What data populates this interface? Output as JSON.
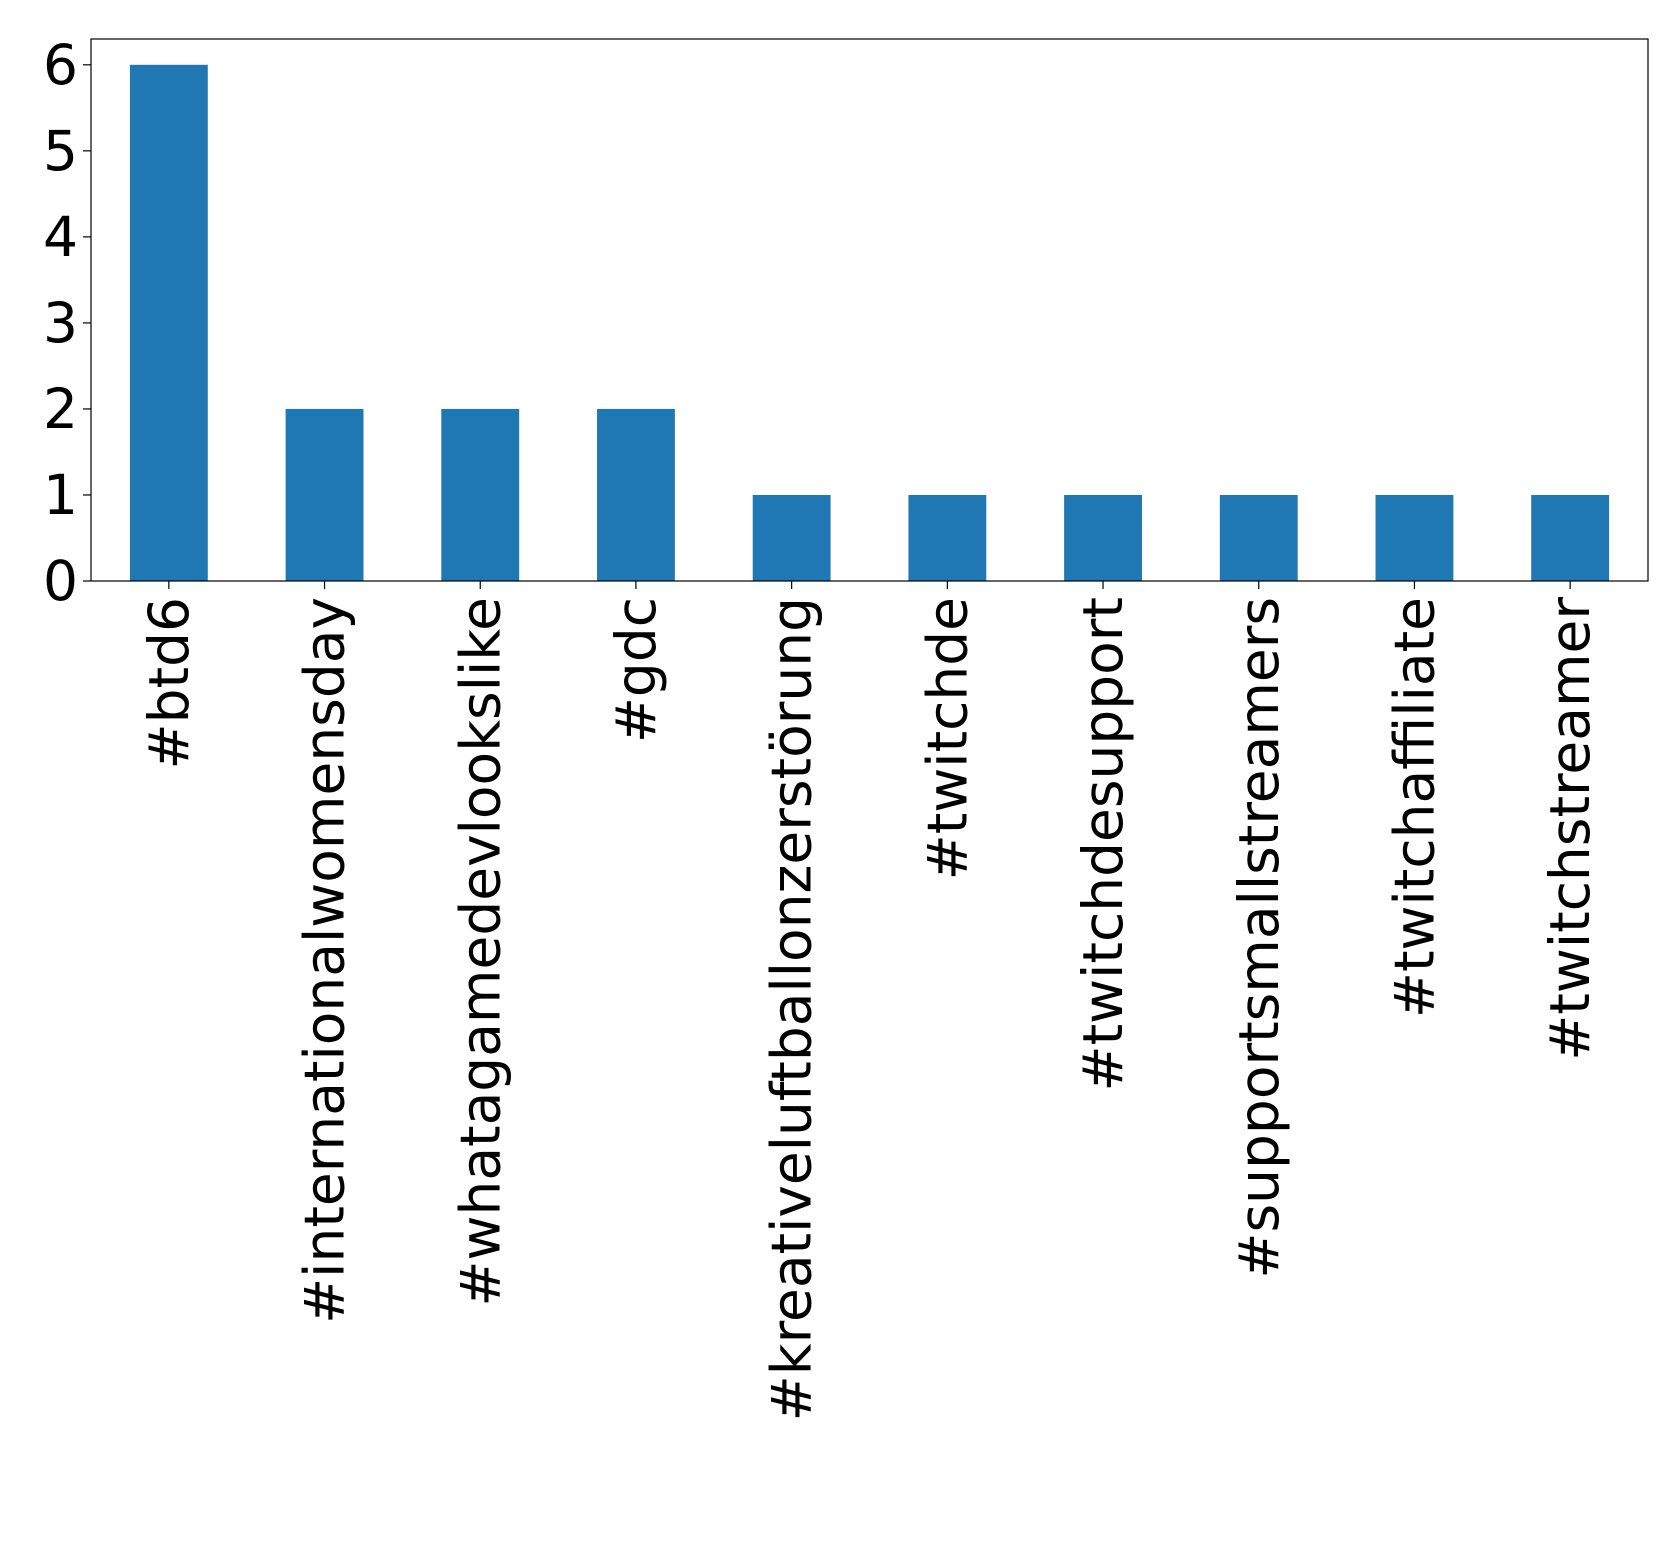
{
  "chart_data": {
    "type": "bar",
    "title": "",
    "xlabel": "",
    "ylabel": "",
    "categories": [
      "#btd6",
      "#internationalwomensday",
      "#whatagamedevlookslike",
      "#gdc",
      "#kreativeluftballonzerstörung",
      "#twitchde",
      "#twitchdesupport",
      "#supportsmallstreamers",
      "#twitchaffiliate",
      "#twitchstreamer"
    ],
    "values": [
      6,
      2,
      2,
      2,
      1,
      1,
      1,
      1,
      1,
      1
    ],
    "ylim": [
      0,
      6.3
    ],
    "yticks": [
      0,
      1,
      2,
      3,
      4,
      5,
      6
    ],
    "grid": false,
    "legend": "none",
    "bar_color": "#1f77b4"
  }
}
